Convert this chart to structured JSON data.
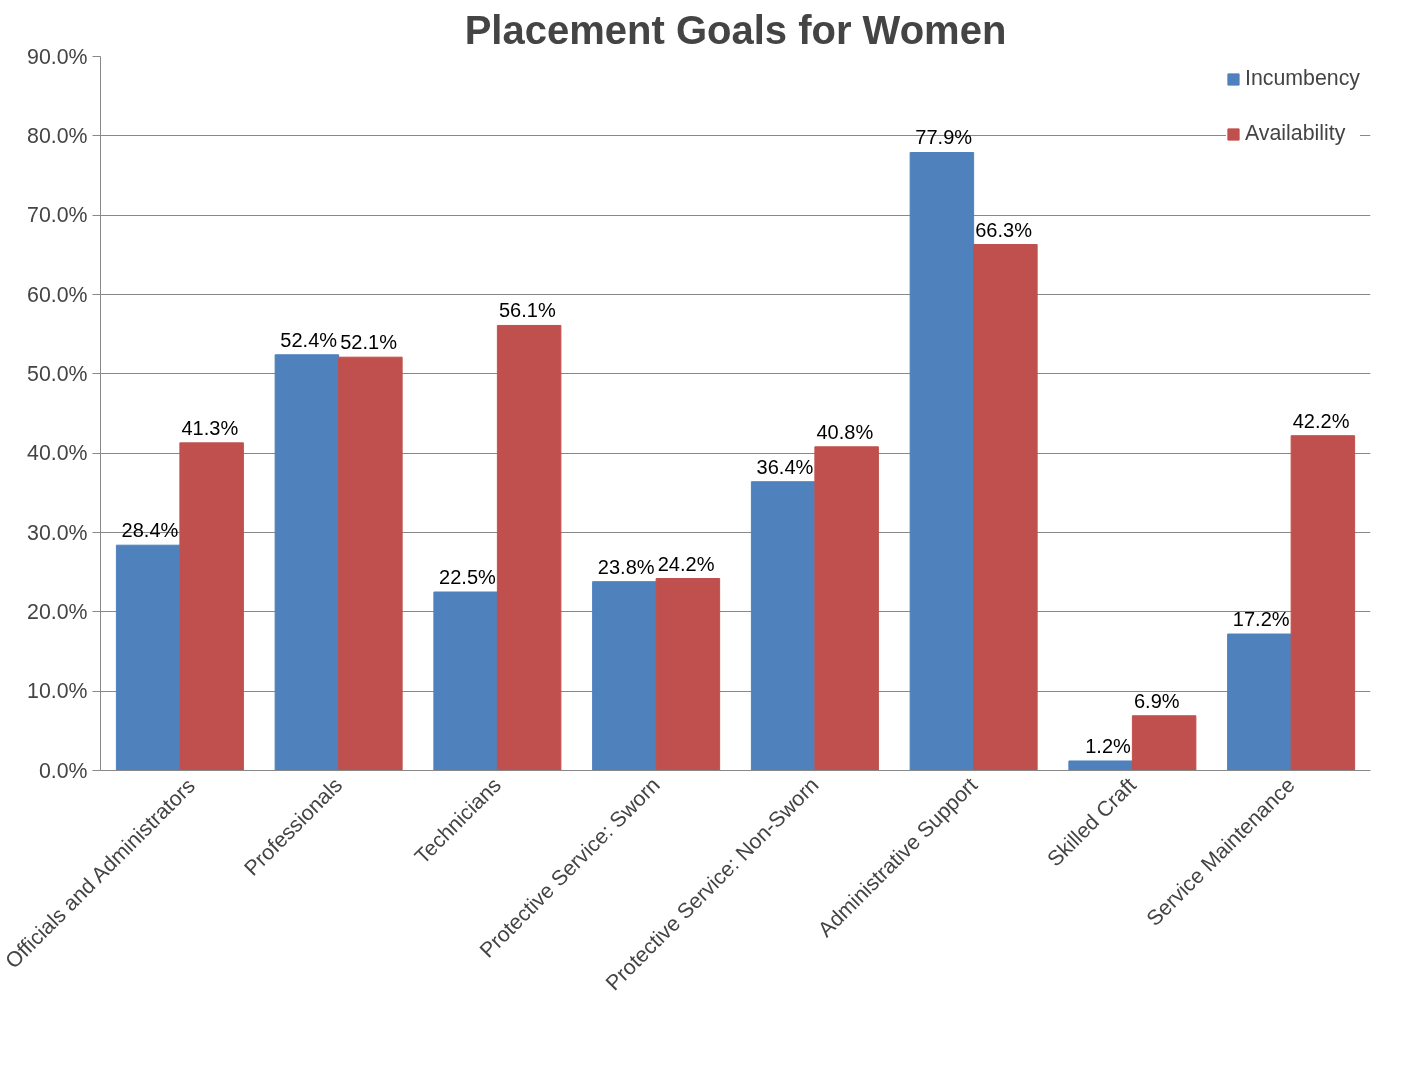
{
  "chart_data": {
    "type": "bar",
    "title": "Placement Goals for Women",
    "categories": [
      "Officials and Administrators",
      "Professionals",
      "Technicians",
      "Protective Service: Sworn",
      "Protective Service: Non-Sworn",
      "Administrative Support",
      "Skilled Craft",
      "Service Maintenance"
    ],
    "series": [
      {
        "name": "Incumbency",
        "color": "#4f81bd",
        "values": [
          28.4,
          52.4,
          22.5,
          23.8,
          36.4,
          77.9,
          1.2,
          17.2
        ],
        "value_labels": [
          "28.4%",
          "52.4%",
          "22.5%",
          "23.8%",
          "36.4%",
          "77.9%",
          "1.2%",
          "17.2%"
        ]
      },
      {
        "name": "Availability",
        "color": "#c0504d",
        "values": [
          41.3,
          52.1,
          56.1,
          24.2,
          40.8,
          66.3,
          6.9,
          42.2
        ],
        "value_labels": [
          "41.3%",
          "52.1%",
          "56.1%",
          "24.2%",
          "40.8%",
          "66.3%",
          "6.9%",
          "42.2%"
        ]
      }
    ],
    "ylim": [
      0,
      90
    ],
    "yticks": [
      {
        "value": 0,
        "label": "0.0%"
      },
      {
        "value": 10,
        "label": "10.0%"
      },
      {
        "value": 20,
        "label": "20.0%"
      },
      {
        "value": 30,
        "label": "30.0%"
      },
      {
        "value": 40,
        "label": "40.0%"
      },
      {
        "value": 50,
        "label": "50.0%"
      },
      {
        "value": 60,
        "label": "60.0%"
      },
      {
        "value": 70,
        "label": "70.0%"
      },
      {
        "value": 80,
        "label": "80.0%"
      },
      {
        "value": 90,
        "label": "90.0%"
      }
    ],
    "grid": "y",
    "legend": "top right"
  }
}
